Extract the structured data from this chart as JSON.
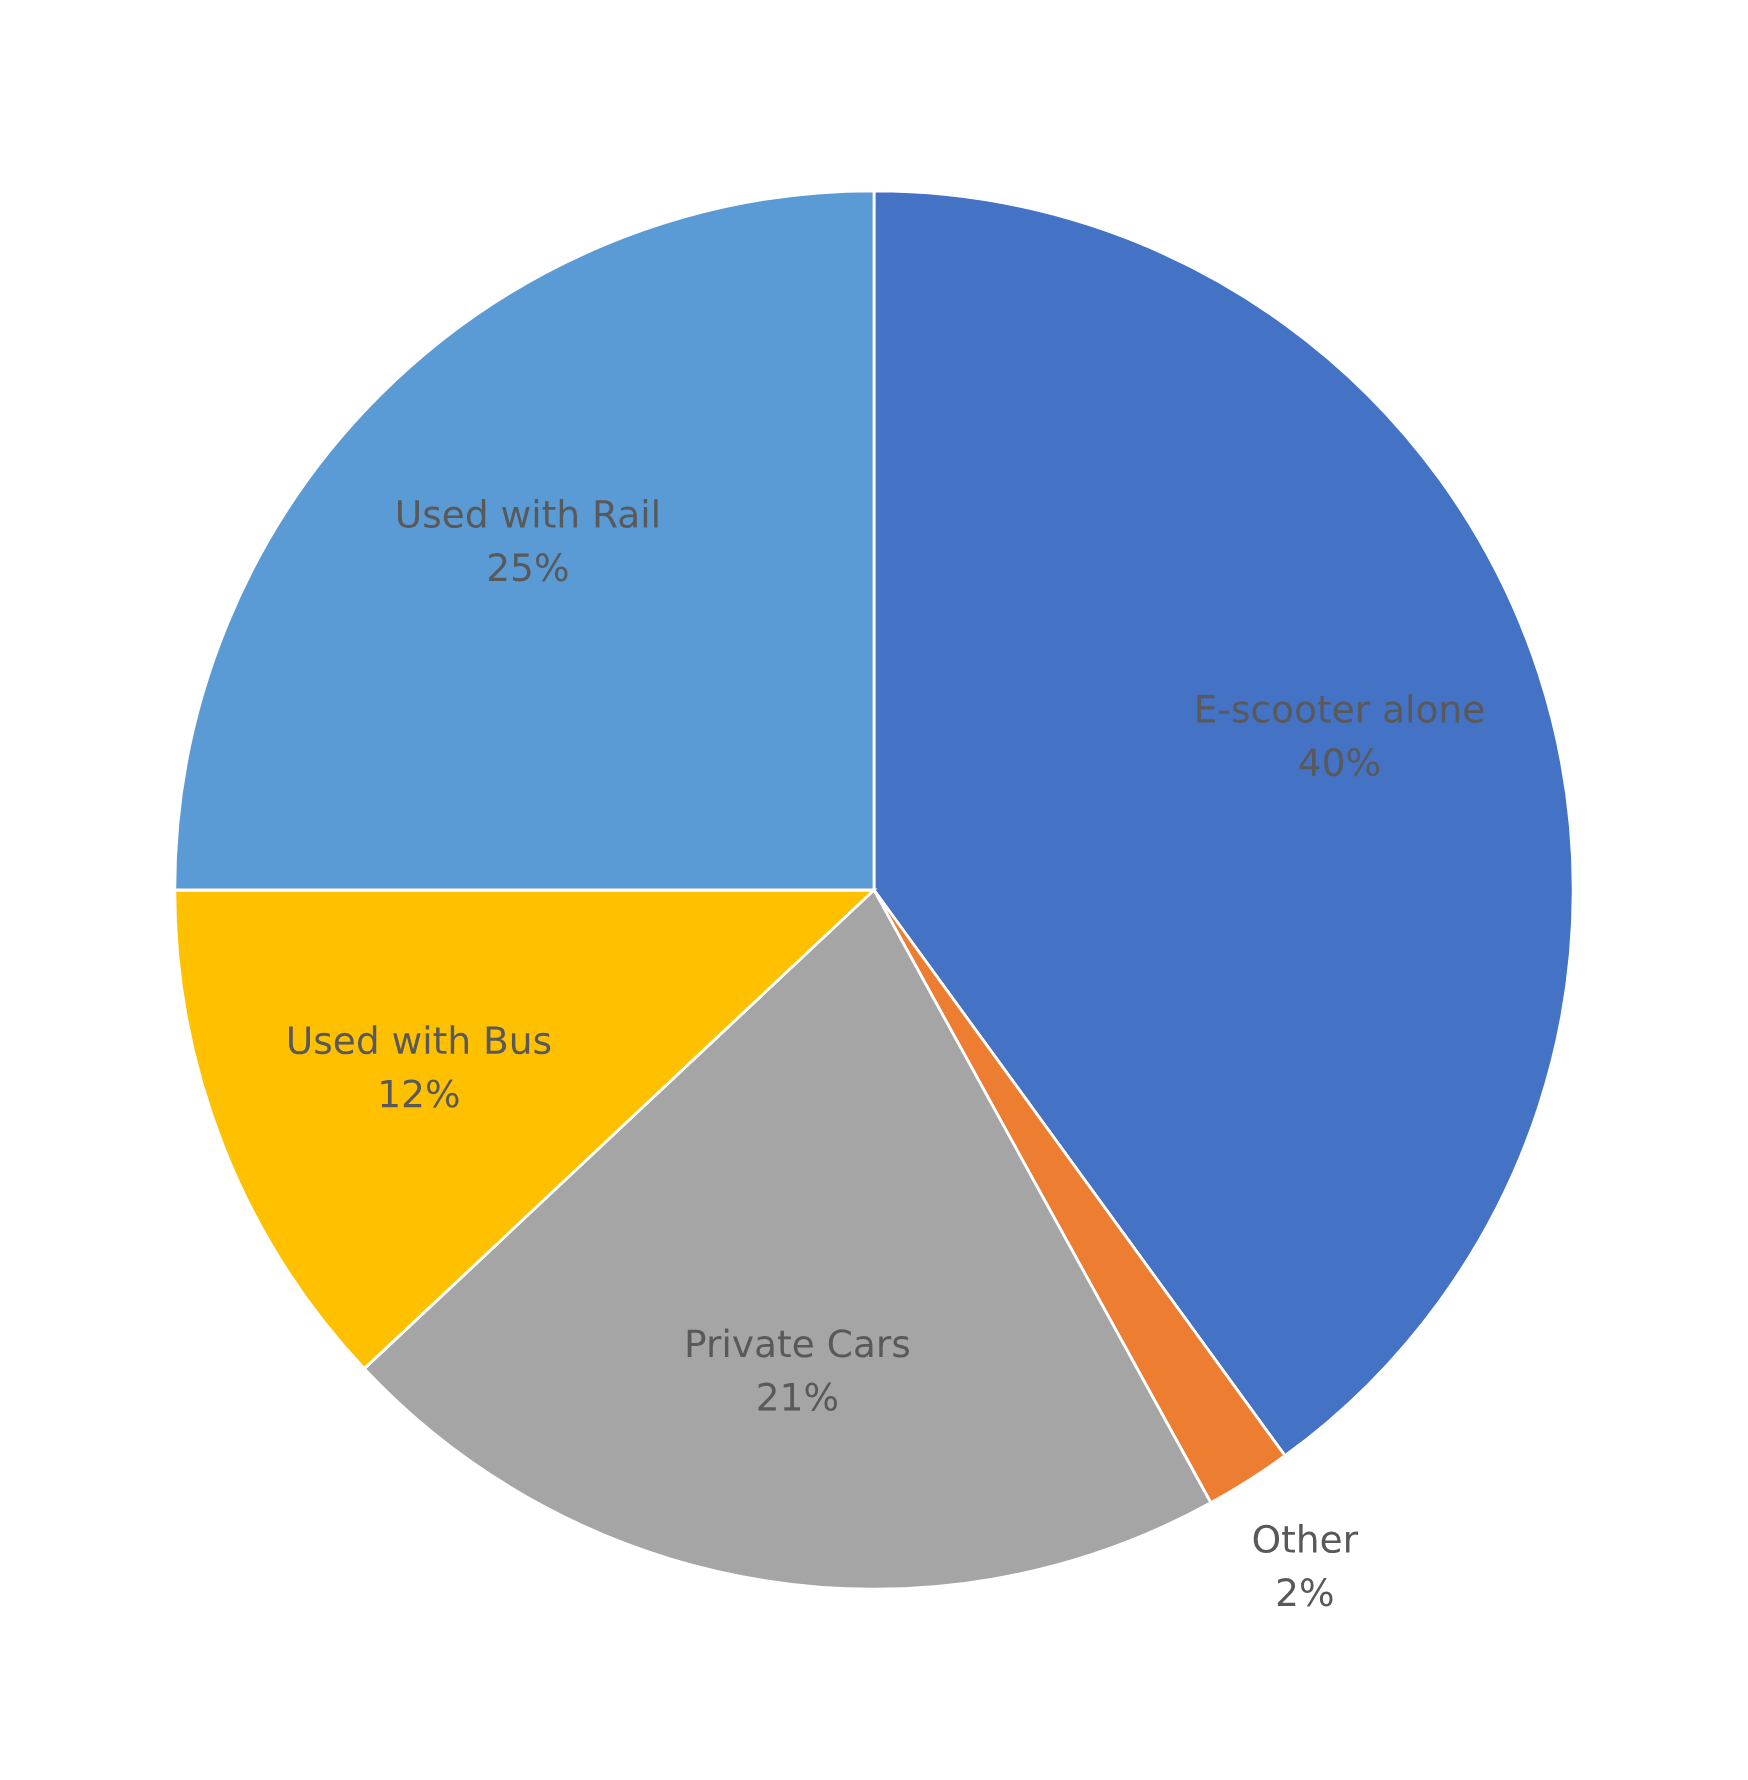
{
  "chart_data": {
    "type": "pie",
    "categories": [
      "E-scooter alone",
      "Other",
      "Private Cars",
      "Used with Bus",
      "Used with Rail"
    ],
    "values": [
      40,
      2,
      21,
      12,
      25
    ],
    "colors": [
      "#4472c4",
      "#ed7d31",
      "#a5a5a5",
      "#ffc000",
      "#5b9bd5"
    ],
    "value_labels": [
      "40%",
      "2%",
      "21%",
      "12%",
      "25%"
    ]
  }
}
